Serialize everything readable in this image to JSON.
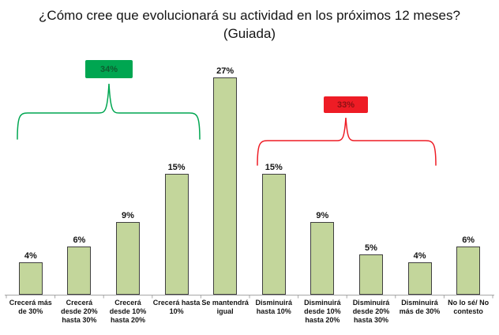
{
  "chart_data": {
    "type": "bar",
    "title": "¿Cómo cree que evolucionará su actividad en los próximos 12 meses? (Guiada)",
    "categories": [
      "Crecerá más de 30%",
      "Crecerá desde 20% hasta 30%",
      "Crecerá desde 10% hasta 20%",
      "Crecerá hasta 10%",
      "Se mantendrá igual",
      "Disminuirá hasta 10%",
      "Disminuirá desde 10% hasta 20%",
      "Disminuirá desde 20% hasta 30%",
      "Disminuirá más de 30%",
      "No lo sé/ No contesto"
    ],
    "values": [
      4,
      6,
      9,
      15,
      27,
      15,
      9,
      5,
      4,
      6
    ],
    "value_labels": [
      "4%",
      "6%",
      "9%",
      "15%",
      "27%",
      "15%",
      "9%",
      "5%",
      "4%",
      "6%"
    ],
    "unit": "%",
    "xlabel": "",
    "ylabel": "",
    "ylim": [
      0,
      28
    ],
    "grid": false,
    "bar_color": "#c3d69b",
    "bar_border_color": "#404040",
    "axis_color": "#a6a6a6",
    "annotations": [
      {
        "label": "34%",
        "value": 34,
        "color": "#00a651",
        "text_color": "#0e5c30",
        "span_category_indices": [
          0,
          3
        ]
      },
      {
        "label": "33%",
        "value": 33,
        "color": "#ee1c25",
        "text_color": "#8e1114",
        "span_category_indices": [
          5,
          8
        ]
      }
    ]
  }
}
